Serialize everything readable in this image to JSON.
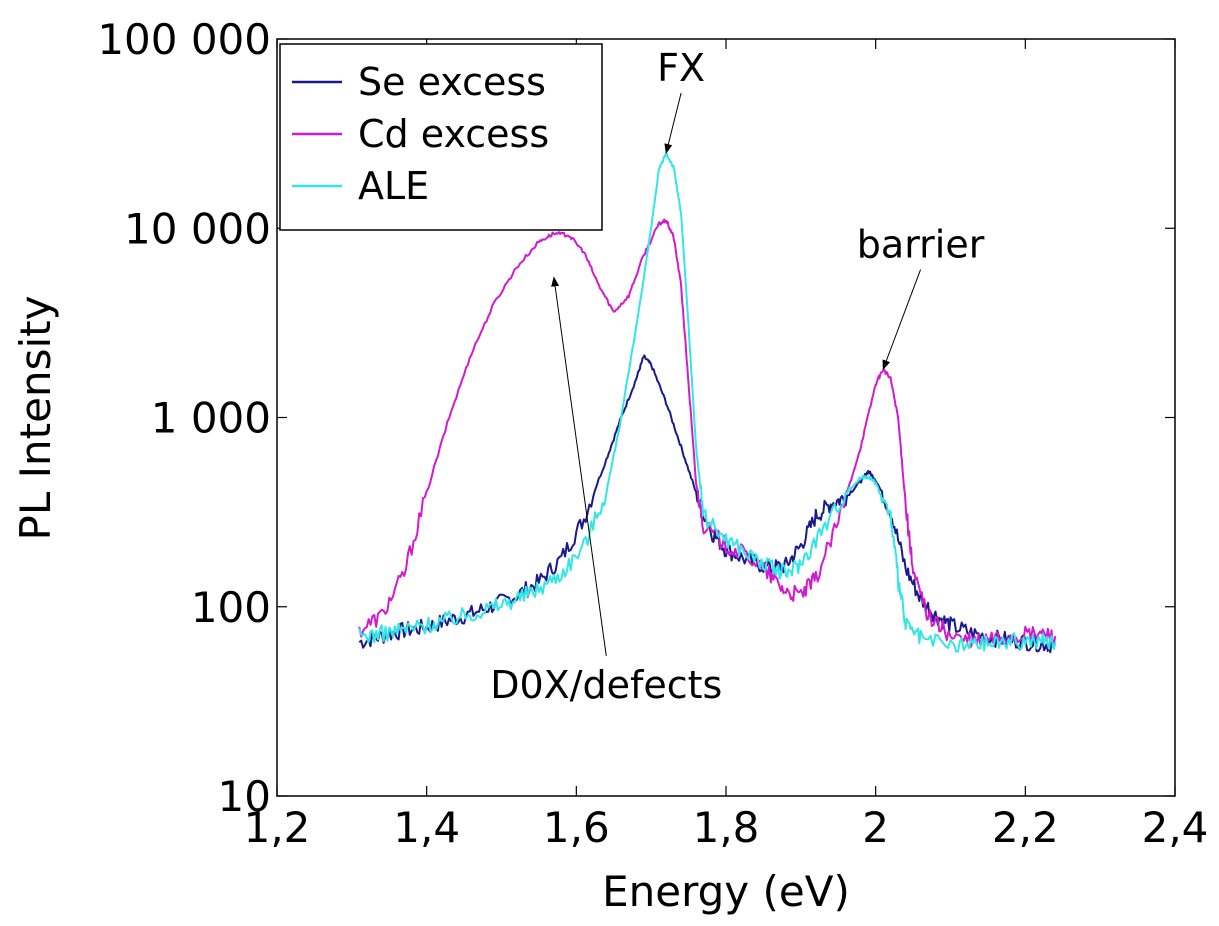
{
  "chart_data": {
    "type": "line",
    "title": "",
    "xlabel": "Energy (eV)",
    "ylabel": "PL Intensity",
    "xlim": [
      1.2,
      2.4
    ],
    "ylim": [
      10,
      100000
    ],
    "yscale": "log",
    "grid": false,
    "legend_position": "top-left",
    "x_ticks": [
      1.2,
      1.4,
      1.6,
      1.8,
      2.0,
      2.2,
      2.4
    ],
    "x_tick_labels": [
      "1,2",
      "1,4",
      "1,6",
      "1,8",
      "2",
      "2,2",
      "2,4"
    ],
    "y_ticks": [
      10,
      100,
      1000,
      10000,
      100000
    ],
    "y_tick_labels": [
      "10",
      "100",
      "1 000",
      "10 000",
      "100 000"
    ],
    "series": [
      {
        "name": "Se excess",
        "color": "#1a1a8c",
        "points": [
          [
            1.31,
            65
          ],
          [
            1.34,
            70
          ],
          [
            1.37,
            75
          ],
          [
            1.4,
            78
          ],
          [
            1.43,
            85
          ],
          [
            1.46,
            92
          ],
          [
            1.49,
            102
          ],
          [
            1.52,
            115
          ],
          [
            1.55,
            135
          ],
          [
            1.58,
            180
          ],
          [
            1.61,
            290
          ],
          [
            1.64,
            600
          ],
          [
            1.66,
            1000
          ],
          [
            1.68,
            1600
          ],
          [
            1.69,
            2100
          ],
          [
            1.7,
            1900
          ],
          [
            1.72,
            1200
          ],
          [
            1.74,
            700
          ],
          [
            1.76,
            400
          ],
          [
            1.78,
            250
          ],
          [
            1.8,
            200
          ],
          [
            1.83,
            175
          ],
          [
            1.86,
            160
          ],
          [
            1.88,
            165
          ],
          [
            1.9,
            210
          ],
          [
            1.92,
            300
          ],
          [
            1.94,
            350
          ],
          [
            1.96,
            380
          ],
          [
            1.98,
            460
          ],
          [
            1.99,
            520
          ],
          [
            2.0,
            470
          ],
          [
            2.02,
            320
          ],
          [
            2.04,
            160
          ],
          [
            2.06,
            110
          ],
          [
            2.08,
            90
          ],
          [
            2.1,
            80
          ],
          [
            2.13,
            72
          ],
          [
            2.16,
            68
          ],
          [
            2.19,
            66
          ],
          [
            2.22,
            64
          ],
          [
            2.24,
            63
          ]
        ]
      },
      {
        "name": "Cd excess",
        "color": "#d11ad1",
        "points": [
          [
            1.31,
            75
          ],
          [
            1.34,
            90
          ],
          [
            1.37,
            150
          ],
          [
            1.4,
            400
          ],
          [
            1.43,
            1000
          ],
          [
            1.46,
            2200
          ],
          [
            1.49,
            4000
          ],
          [
            1.52,
            6200
          ],
          [
            1.55,
            8500
          ],
          [
            1.57,
            9400
          ],
          [
            1.59,
            9200
          ],
          [
            1.61,
            7500
          ],
          [
            1.63,
            5000
          ],
          [
            1.65,
            3600
          ],
          [
            1.67,
            4400
          ],
          [
            1.69,
            7200
          ],
          [
            1.71,
            10500
          ],
          [
            1.72,
            11000
          ],
          [
            1.73,
            9000
          ],
          [
            1.74,
            5000
          ],
          [
            1.75,
            1500
          ],
          [
            1.76,
            450
          ],
          [
            1.77,
            270
          ],
          [
            1.8,
            210
          ],
          [
            1.83,
            185
          ],
          [
            1.86,
            145
          ],
          [
            1.88,
            120
          ],
          [
            1.9,
            115
          ],
          [
            1.92,
            140
          ],
          [
            1.95,
            280
          ],
          [
            1.98,
            700
          ],
          [
            2.0,
            1500
          ],
          [
            2.01,
            1800
          ],
          [
            2.02,
            1600
          ],
          [
            2.03,
            1000
          ],
          [
            2.04,
            350
          ],
          [
            2.05,
            150
          ],
          [
            2.07,
            90
          ],
          [
            2.1,
            70
          ],
          [
            2.13,
            65
          ],
          [
            2.16,
            68
          ],
          [
            2.19,
            70
          ],
          [
            2.22,
            72
          ],
          [
            2.24,
            70
          ]
        ]
      },
      {
        "name": "ALE",
        "color": "#33e6e6",
        "points": [
          [
            1.31,
            70
          ],
          [
            1.34,
            72
          ],
          [
            1.37,
            76
          ],
          [
            1.4,
            80
          ],
          [
            1.43,
            86
          ],
          [
            1.46,
            92
          ],
          [
            1.49,
            100
          ],
          [
            1.52,
            110
          ],
          [
            1.55,
            125
          ],
          [
            1.58,
            150
          ],
          [
            1.61,
            210
          ],
          [
            1.64,
            400
          ],
          [
            1.66,
            1000
          ],
          [
            1.68,
            3000
          ],
          [
            1.7,
            10000
          ],
          [
            1.71,
            20000
          ],
          [
            1.72,
            25000
          ],
          [
            1.73,
            21000
          ],
          [
            1.74,
            12000
          ],
          [
            1.75,
            3000
          ],
          [
            1.76,
            700
          ],
          [
            1.77,
            300
          ],
          [
            1.8,
            230
          ],
          [
            1.83,
            190
          ],
          [
            1.86,
            160
          ],
          [
            1.88,
            150
          ],
          [
            1.9,
            170
          ],
          [
            1.93,
            260
          ],
          [
            1.96,
            400
          ],
          [
            1.98,
            480
          ],
          [
            1.99,
            490
          ],
          [
            2.0,
            450
          ],
          [
            2.02,
            300
          ],
          [
            2.03,
            140
          ],
          [
            2.04,
            80
          ],
          [
            2.06,
            68
          ],
          [
            2.1,
            62
          ],
          [
            2.13,
            63
          ],
          [
            2.16,
            65
          ],
          [
            2.19,
            66
          ],
          [
            2.22,
            66
          ],
          [
            2.24,
            65
          ]
        ]
      }
    ],
    "annotations": [
      {
        "text": "FX",
        "x": 1.74,
        "y": 60000,
        "arrow_to": [
          1.72,
          25000
        ]
      },
      {
        "text": "barrier",
        "x": 2.06,
        "y": 7000,
        "arrow_to": [
          2.01,
          1800
        ]
      },
      {
        "text": "D0X/defects",
        "x": 1.64,
        "y": 33,
        "arrow_to": [
          1.57,
          5500
        ]
      }
    ]
  }
}
